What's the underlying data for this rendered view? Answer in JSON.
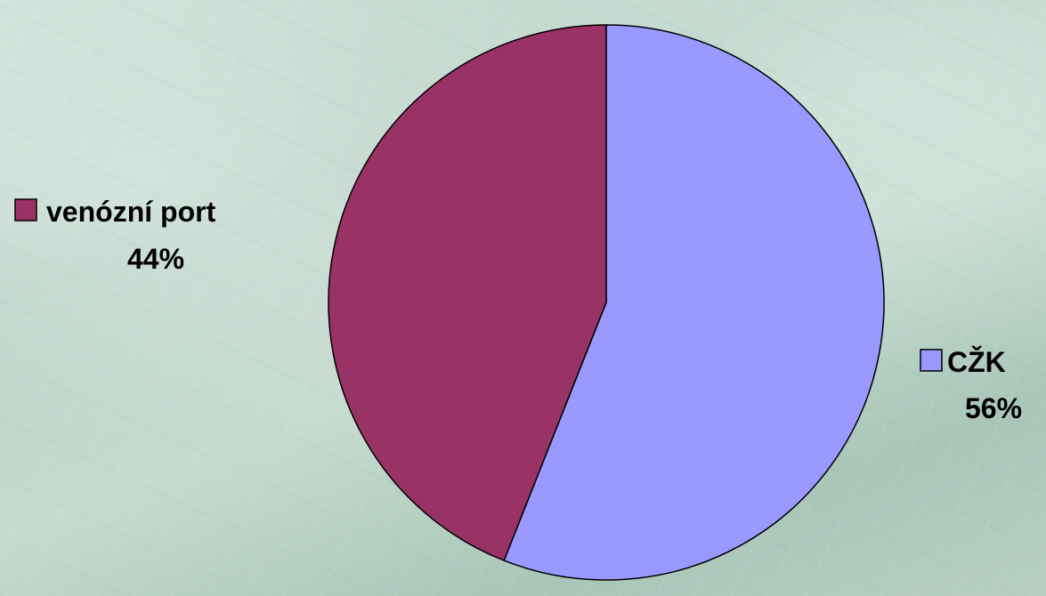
{
  "chart_data": {
    "type": "pie",
    "title": "",
    "slices": [
      {
        "label": "CŽK",
        "value": 56,
        "value_label": "56%",
        "color": "#9999ff"
      },
      {
        "label": "venózní port",
        "value": 44,
        "value_label": "44%",
        "color": "#993366"
      }
    ],
    "start_angle": "12 o'clock",
    "direction": "clockwise",
    "legend": "labels-beside-slices"
  }
}
